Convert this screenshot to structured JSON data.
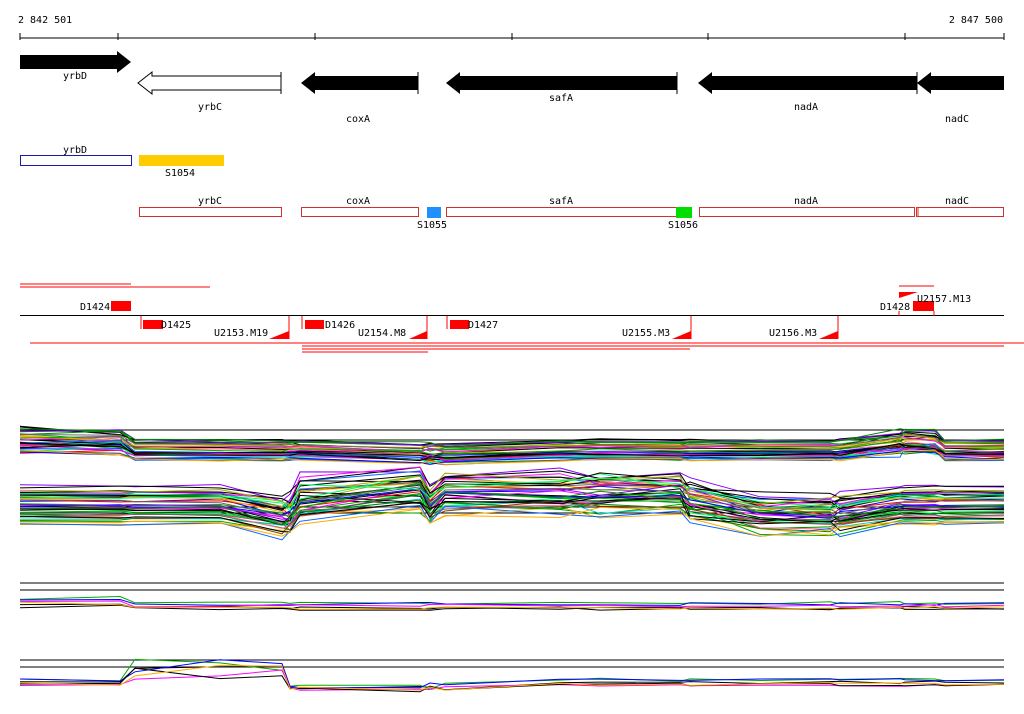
{
  "coordinate_range": {
    "start_label": "2 842 501",
    "end_label": "2 847 500"
  },
  "genes": [
    {
      "name": "yrbD",
      "strand": "+",
      "fill": "solid"
    },
    {
      "name": "yrbC",
      "strand": "-",
      "fill": "outline"
    },
    {
      "name": "coxA",
      "strand": "-",
      "fill": "solid"
    },
    {
      "name": "safA",
      "strand": "-",
      "fill": "solid"
    },
    {
      "name": "nadA",
      "strand": "-",
      "fill": "solid"
    },
    {
      "name": "nadC",
      "strand": "-",
      "fill": "solid"
    }
  ],
  "annotation_blocks": [
    {
      "name": "yrbD",
      "color": "#1a1aa8",
      "kind": "outline"
    },
    {
      "name": "S1054",
      "color": "#ffcc00",
      "kind": "filled"
    },
    {
      "name": "yrbC",
      "color": "#d03030",
      "kind": "outline"
    },
    {
      "name": "coxA",
      "color": "#d03030",
      "kind": "outline"
    },
    {
      "name": "S1055",
      "color": "#1e90ff",
      "kind": "filled"
    },
    {
      "name": "safA",
      "color": "#d03030",
      "kind": "outline"
    },
    {
      "name": "S1056",
      "color": "#00dd00",
      "kind": "filled"
    },
    {
      "name": "nadA",
      "color": "#d03030",
      "kind": "outline"
    },
    {
      "name": "nadC",
      "color": "#d03030",
      "kind": "outline"
    }
  ],
  "features": [
    {
      "name": "D1424",
      "kind": "D"
    },
    {
      "name": "D1425",
      "kind": "D"
    },
    {
      "name": "U2153.M19",
      "kind": "U"
    },
    {
      "name": "D1426",
      "kind": "D"
    },
    {
      "name": "U2154.M8",
      "kind": "U"
    },
    {
      "name": "D1427",
      "kind": "D"
    },
    {
      "name": "U2155.M3",
      "kind": "U"
    },
    {
      "name": "U2156.M3",
      "kind": "U"
    },
    {
      "name": "D1428",
      "kind": "D"
    },
    {
      "name": "U2157.M13",
      "kind": "U"
    }
  ],
  "colors": {
    "gene_arrow": "#000000",
    "feature_red": "#ff0000",
    "annotation_outline": "#d03030",
    "trace_palette": [
      "#ff0000",
      "#00aa00",
      "#0000ff",
      "#ff00ff",
      "#00cccc",
      "#ffaa00",
      "#8800ff",
      "#008800",
      "#ff6688",
      "#666666",
      "#aaaa00",
      "#00ff66",
      "#884400",
      "#0066ff"
    ]
  }
}
